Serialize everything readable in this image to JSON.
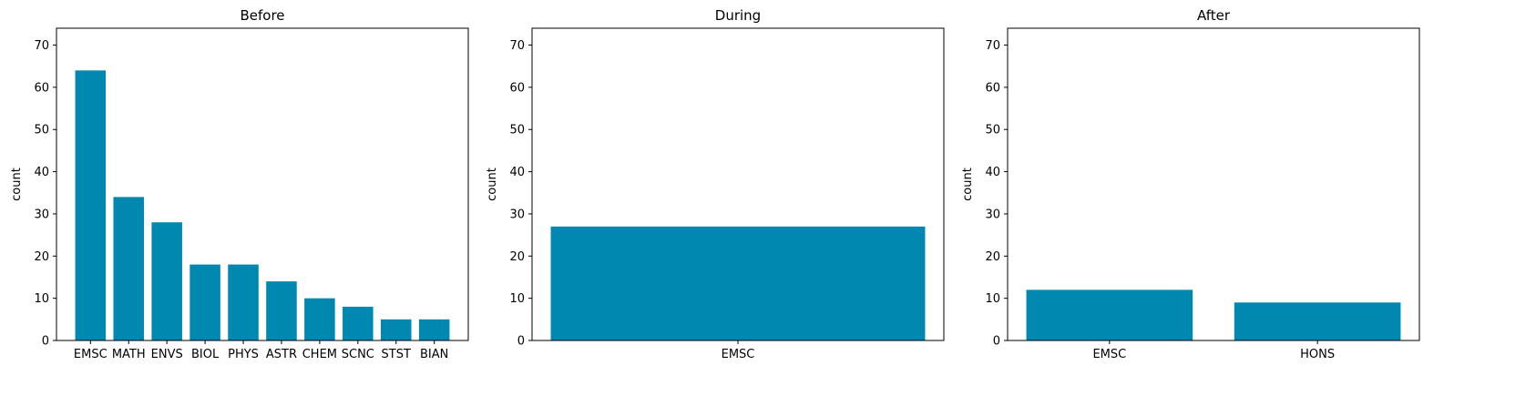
{
  "chart_data": [
    {
      "type": "bar",
      "title": "Before",
      "xlabel": "",
      "ylabel": "count",
      "categories": [
        "EMSC",
        "MATH",
        "ENVS",
        "BIOL",
        "PHYS",
        "ASTR",
        "CHEM",
        "SCNC",
        "STST",
        "BIAN"
      ],
      "values": [
        64,
        34,
        28,
        18,
        18,
        14,
        10,
        8,
        5,
        5
      ],
      "ylim": [
        0,
        74
      ],
      "yticks": [
        0,
        10,
        20,
        30,
        40,
        50,
        60,
        70
      ],
      "grid": false,
      "color": "#0088b0"
    },
    {
      "type": "bar",
      "title": "During",
      "xlabel": "",
      "ylabel": "count",
      "categories": [
        "EMSC"
      ],
      "values": [
        27
      ],
      "ylim": [
        0,
        74
      ],
      "yticks": [
        0,
        10,
        20,
        30,
        40,
        50,
        60,
        70
      ],
      "grid": false,
      "color": "#0088b0"
    },
    {
      "type": "bar",
      "title": "After",
      "xlabel": "",
      "ylabel": "count",
      "categories": [
        "EMSC",
        "HONS"
      ],
      "values": [
        12,
        9
      ],
      "ylim": [
        0,
        74
      ],
      "yticks": [
        0,
        10,
        20,
        30,
        40,
        50,
        60,
        70
      ],
      "grid": false,
      "color": "#0088b0"
    }
  ]
}
